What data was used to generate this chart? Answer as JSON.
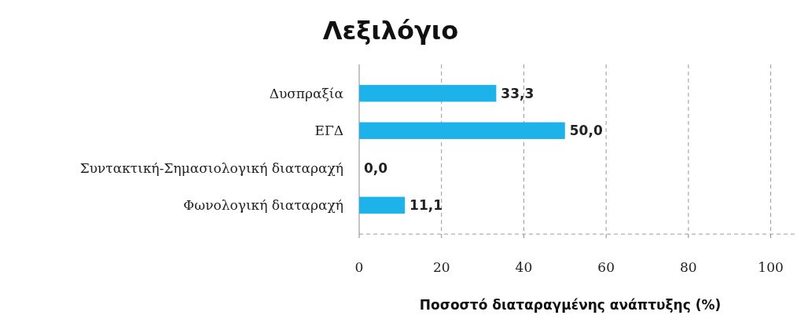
{
  "chart_data": {
    "type": "bar",
    "orientation": "horizontal",
    "title": "Λεξιλόγιο",
    "xlabel": "Ποσοστό διαταραγμένης ανάπτυξης (%)",
    "categories": [
      "Δυσπραξία",
      "ΕΓΔ",
      "Συντακτική-Σημασιολογική διαταραχή",
      "Φωνολογική διαταραχή"
    ],
    "values": [
      33.3,
      50.0,
      0.0,
      11.1
    ],
    "value_labels": [
      "33,3",
      "50,0",
      "0,0",
      "11,1"
    ],
    "color": "#1db3ea",
    "xlim": [
      0,
      106
    ],
    "xticks": [
      0,
      20,
      40,
      60,
      80,
      100
    ],
    "grid": "x"
  }
}
